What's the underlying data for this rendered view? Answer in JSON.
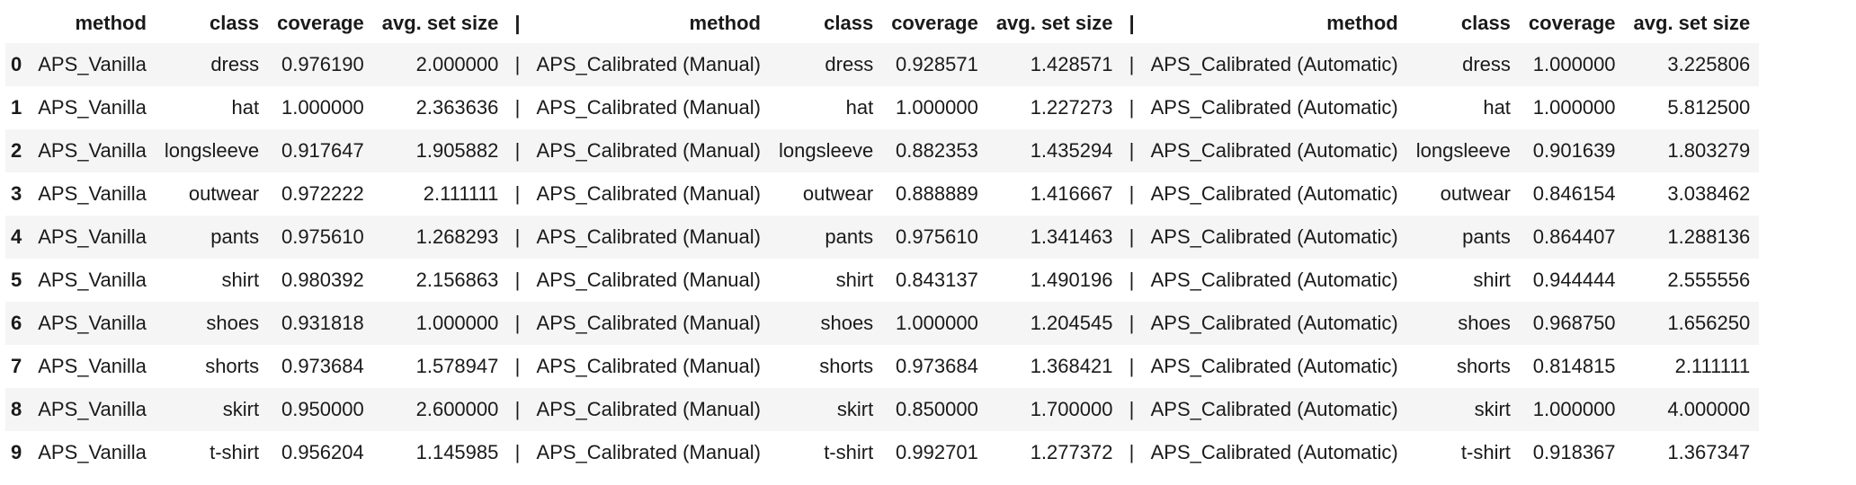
{
  "table": {
    "headers": [
      "",
      "method",
      "class",
      "coverage",
      "avg. set size",
      "|",
      "method",
      "class",
      "coverage",
      "avg. set size",
      "|",
      "method",
      "class",
      "coverage",
      "avg. set size"
    ],
    "rows": [
      [
        "0",
        "APS_Vanilla",
        "dress",
        "0.976190",
        "2.000000",
        "|",
        "APS_Calibrated (Manual)",
        "dress",
        "0.928571",
        "1.428571",
        "|",
        "APS_Calibrated (Automatic)",
        "dress",
        "1.000000",
        "3.225806"
      ],
      [
        "1",
        "APS_Vanilla",
        "hat",
        "1.000000",
        "2.363636",
        "|",
        "APS_Calibrated (Manual)",
        "hat",
        "1.000000",
        "1.227273",
        "|",
        "APS_Calibrated (Automatic)",
        "hat",
        "1.000000",
        "5.812500"
      ],
      [
        "2",
        "APS_Vanilla",
        "longsleeve",
        "0.917647",
        "1.905882",
        "|",
        "APS_Calibrated (Manual)",
        "longsleeve",
        "0.882353",
        "1.435294",
        "|",
        "APS_Calibrated (Automatic)",
        "longsleeve",
        "0.901639",
        "1.803279"
      ],
      [
        "3",
        "APS_Vanilla",
        "outwear",
        "0.972222",
        "2.111111",
        "|",
        "APS_Calibrated (Manual)",
        "outwear",
        "0.888889",
        "1.416667",
        "|",
        "APS_Calibrated (Automatic)",
        "outwear",
        "0.846154",
        "3.038462"
      ],
      [
        "4",
        "APS_Vanilla",
        "pants",
        "0.975610",
        "1.268293",
        "|",
        "APS_Calibrated (Manual)",
        "pants",
        "0.975610",
        "1.341463",
        "|",
        "APS_Calibrated (Automatic)",
        "pants",
        "0.864407",
        "1.288136"
      ],
      [
        "5",
        "APS_Vanilla",
        "shirt",
        "0.980392",
        "2.156863",
        "|",
        "APS_Calibrated (Manual)",
        "shirt",
        "0.843137",
        "1.490196",
        "|",
        "APS_Calibrated (Automatic)",
        "shirt",
        "0.944444",
        "2.555556"
      ],
      [
        "6",
        "APS_Vanilla",
        "shoes",
        "0.931818",
        "1.000000",
        "|",
        "APS_Calibrated (Manual)",
        "shoes",
        "1.000000",
        "1.204545",
        "|",
        "APS_Calibrated (Automatic)",
        "shoes",
        "0.968750",
        "1.656250"
      ],
      [
        "7",
        "APS_Vanilla",
        "shorts",
        "0.973684",
        "1.578947",
        "|",
        "APS_Calibrated (Manual)",
        "shorts",
        "0.973684",
        "1.368421",
        "|",
        "APS_Calibrated (Automatic)",
        "shorts",
        "0.814815",
        "2.111111"
      ],
      [
        "8",
        "APS_Vanilla",
        "skirt",
        "0.950000",
        "2.600000",
        "|",
        "APS_Calibrated (Manual)",
        "skirt",
        "0.850000",
        "1.700000",
        "|",
        "APS_Calibrated (Automatic)",
        "skirt",
        "1.000000",
        "4.000000"
      ],
      [
        "9",
        "APS_Vanilla",
        "t-shirt",
        "0.956204",
        "1.145985",
        "|",
        "APS_Calibrated (Manual)",
        "t-shirt",
        "0.992701",
        "1.277372",
        "|",
        "APS_Calibrated (Automatic)",
        "t-shirt",
        "0.918367",
        "1.367347"
      ]
    ]
  },
  "colors": {
    "row_stripe": "#f5f5f5",
    "background": "#ffffff",
    "text": "#1a1a1a"
  }
}
